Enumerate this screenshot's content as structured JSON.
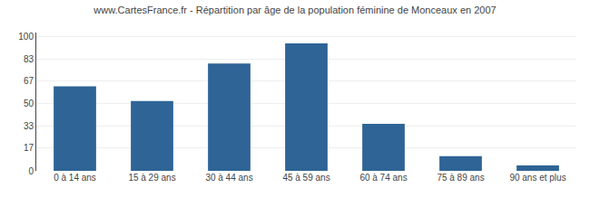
{
  "chart_data": {
    "type": "bar",
    "title": "www.CartesFrance.fr - Répartition par âge de la population féminine de Monceaux en 2007",
    "categories": [
      "0 à 14 ans",
      "15 à 29 ans",
      "30 à 44 ans",
      "45 à 59 ans",
      "60 à 74 ans",
      "75 à 89 ans",
      "90 ans et plus"
    ],
    "values": [
      63,
      52,
      80,
      95,
      35,
      11,
      4
    ],
    "color": "#2e6496",
    "ylim": [
      0,
      103
    ],
    "yticks": [
      0,
      17,
      33,
      50,
      67,
      83,
      100
    ],
    "grid": true
  }
}
